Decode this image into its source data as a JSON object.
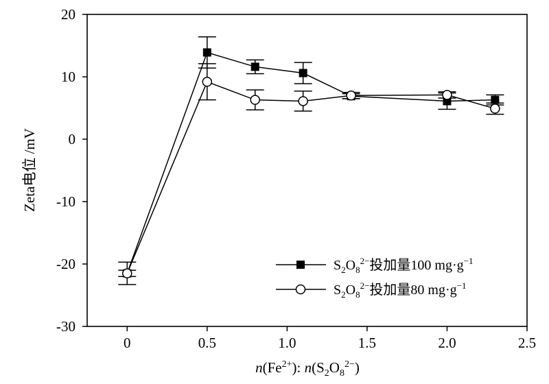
{
  "chart_data": {
    "type": "line",
    "x_label": "n(Fe2+): n(S2O82−)",
    "y_label": "Zeta电位 /mV",
    "x_range": [
      -0.25,
      2.5
    ],
    "y_range": [
      -30,
      20
    ],
    "x_ticks": [
      "0",
      "0.5",
      "1.0",
      "1.5",
      "2.0",
      "2.5"
    ],
    "x_tick_values": [
      0,
      0.5,
      1.0,
      1.5,
      2.0,
      2.5
    ],
    "y_ticks": [
      "20",
      "10",
      "0",
      "-10",
      "-20",
      "-30"
    ],
    "y_tick_values": [
      20,
      10,
      0,
      -10,
      -20,
      -30
    ],
    "grid": false,
    "legend_position": "lower-right",
    "series": [
      {
        "name": "S2O82−投加量100 mg·g−1",
        "marker": "filled-square",
        "color": "#000000",
        "x": [
          0,
          0.5,
          0.8,
          1.1,
          1.4,
          2.0,
          2.3
        ],
        "y": [
          -21.5,
          13.9,
          11.6,
          10.6,
          6.9,
          6.1,
          6.3
        ],
        "err": [
          1.8,
          2.5,
          1.1,
          1.7,
          0.4,
          1.3,
          0.8
        ]
      },
      {
        "name": "S2O82−投加量80 mg·g−1",
        "marker": "open-circle",
        "color": "#000000",
        "x": [
          0,
          0.5,
          0.8,
          1.1,
          1.4,
          2.0,
          2.3
        ],
        "y": [
          -21.5,
          9.2,
          6.3,
          6.1,
          7.0,
          7.1,
          4.9
        ],
        "err": [
          0.5,
          2.9,
          1.6,
          1.6,
          0.5,
          0.5,
          0.9
        ]
      }
    ]
  },
  "text": {
    "ylabel": "Zeta电位 /mV",
    "xlabel_n1": "n",
    "xlabel_fe": "(Fe",
    "xlabel_fe_sup": "2+",
    "xlabel_mid": "): ",
    "xlabel_n2": "n",
    "xlabel_s": "(S",
    "xlabel_s_sub": "2",
    "xlabel_o": "O",
    "xlabel_o_sub": "8",
    "xlabel_o_sup": "2−",
    "xlabel_end": ")",
    "legend1_s": "S",
    "legend1_s_sub": "2",
    "legend1_o": "O",
    "legend1_o_sub": "8",
    "legend1_sup": "2−",
    "legend1_rest": "投加量100 mg·g",
    "legend1_unit_sup": "−1",
    "legend2_s": "S",
    "legend2_s_sub": "2",
    "legend2_o": "O",
    "legend2_o_sub": "8",
    "legend2_sup": "2−",
    "legend2_rest": "投加量80 mg·g",
    "legend2_unit_sup": "−1"
  }
}
